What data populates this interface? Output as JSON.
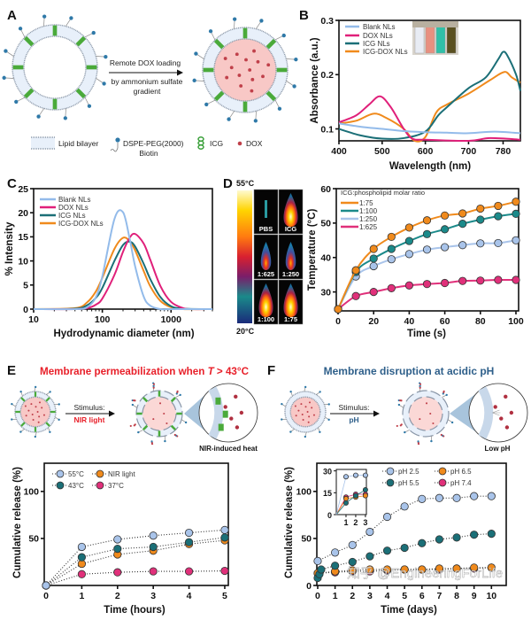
{
  "panel_labels": {
    "a": "A",
    "b": "B",
    "c": "C",
    "d": "D",
    "e": "E",
    "f": "F"
  },
  "panel_a": {
    "arrow_text_1": "Remote DOX loading",
    "arrow_text_2": "by ammonium sulfate",
    "arrow_text_3": "gradient",
    "legend": {
      "lipid": "Lipid bilayer",
      "dspe_1": "DSPE-PEG(2000)",
      "dspe_2": "Biotin",
      "icg": "ICG",
      "dox": "DOX"
    }
  },
  "panel_d_images": {
    "scale_max": "55°C",
    "scale_min": "20°C",
    "labels": [
      "PBS",
      "ICG",
      "1:625",
      "1:250",
      "1:100",
      "1:75"
    ]
  },
  "panel_e": {
    "title": "Membrane permeabilization when ",
    "title_T": "T",
    "title_tail": " > 43°C",
    "stimulus": "Stimulus:",
    "stimulus_value": "NIR light",
    "zoom_caption": "NIR-induced heat"
  },
  "panel_f": {
    "title": "Membrane disruption at acidic pH",
    "stimulus": "Stimulus:",
    "stimulus_value": "pH",
    "zoom_caption": "Low pH"
  },
  "watermark": "知乎 @EngineeringForLife",
  "colors": {
    "blank": "#93bbea",
    "dox": "#e0207a",
    "icg": "#1b6f77",
    "icg_dox": "#f08a1c",
    "title_e": "#e8202a",
    "title_f": "#2e5f8a"
  },
  "chart_data": [
    {
      "panel": "B",
      "type": "line",
      "xlabel": "Wavelength (nm)",
      "ylabel": "Absorbance (a.u.)",
      "xlim": [
        400,
        820
      ],
      "ylim": [
        0.078,
        0.3
      ],
      "xscale": "linear",
      "xticks": [
        400,
        500,
        600,
        700,
        780
      ],
      "yticks": [
        0.1,
        0.2,
        0.3
      ],
      "legend": "top-left",
      "series": [
        {
          "name": "Blank NLs",
          "color": "#93bbea",
          "x": [
            400,
            450,
            500,
            550,
            600,
            650,
            700,
            760,
            820
          ],
          "y": [
            0.11,
            0.104,
            0.1,
            0.096,
            0.094,
            0.093,
            0.092,
            0.095,
            0.092
          ]
        },
        {
          "name": "DOX NLs",
          "color": "#e0207a",
          "x": [
            400,
            440,
            470,
            495,
            520,
            550,
            570,
            600,
            700,
            750,
            820
          ],
          "y": [
            0.112,
            0.125,
            0.145,
            0.16,
            0.14,
            0.1,
            0.082,
            0.08,
            0.078,
            0.083,
            0.08
          ]
        },
        {
          "name": "ICG NLs",
          "color": "#1b6f77",
          "x": [
            400,
            450,
            500,
            550,
            600,
            630,
            650,
            700,
            740,
            770,
            780,
            790,
            810,
            820
          ],
          "y": [
            0.1,
            0.088,
            0.082,
            0.083,
            0.095,
            0.125,
            0.14,
            0.175,
            0.195,
            0.23,
            0.242,
            0.235,
            0.2,
            0.17
          ]
        },
        {
          "name": "ICG-DOX NLs",
          "color": "#f08a1c",
          "x": [
            400,
            440,
            480,
            510,
            550,
            575,
            600,
            625,
            650,
            700,
            750,
            783,
            800,
            820
          ],
          "y": [
            0.11,
            0.115,
            0.128,
            0.12,
            0.1,
            0.078,
            0.085,
            0.13,
            0.145,
            0.165,
            0.19,
            0.205,
            0.195,
            0.185
          ]
        }
      ]
    },
    {
      "panel": "C",
      "type": "line",
      "xlabel": "Hydrodynamic diameter (nm)",
      "ylabel": "% Intensity",
      "xlim": [
        10,
        4000
      ],
      "ylim": [
        0,
        25
      ],
      "xscale": "log",
      "xticks": [
        10,
        100,
        1000
      ],
      "yticks": [
        0,
        5,
        10,
        15,
        20,
        25
      ],
      "legend": "top-left",
      "series": [
        {
          "name": "Blank NLs",
          "color": "#93bbea",
          "x": [
            10,
            40,
            60,
            80,
            100,
            150,
            200,
            250,
            300,
            400,
            500,
            700,
            1000,
            4000
          ],
          "y": [
            0,
            0,
            0.4,
            2.4,
            6.8,
            18.7,
            20.1,
            14.6,
            8.9,
            2.6,
            0.7,
            0,
            0,
            0
          ]
        },
        {
          "name": "DOX NLs",
          "color": "#e0207a",
          "x": [
            10,
            40,
            60,
            80,
            100,
            150,
            200,
            250,
            300,
            400,
            500,
            700,
            1000,
            1500,
            2000,
            4000
          ],
          "y": [
            0,
            0,
            0.2,
            0.9,
            2.2,
            7.1,
            11.9,
            14.8,
            15.6,
            13.6,
            10.2,
            4.8,
            1.5,
            0.2,
            0,
            0
          ]
        },
        {
          "name": "ICG NLs",
          "color": "#1b6f77",
          "x": [
            10,
            40,
            60,
            80,
            100,
            150,
            200,
            250,
            300,
            400,
            500,
            700,
            1000,
            1500,
            4000
          ],
          "y": [
            0,
            0.1,
            0.8,
            2.3,
            4.4,
            10,
            13.3,
            14,
            13,
            9.4,
            6.2,
            2.5,
            0.6,
            0.1,
            0
          ]
        },
        {
          "name": "ICG-DOX NLs",
          "color": "#f08a1c",
          "x": [
            10,
            40,
            60,
            80,
            100,
            150,
            200,
            250,
            300,
            400,
            500,
            700,
            1000,
            1500,
            4000
          ],
          "y": [
            0,
            0.2,
            1.4,
            3.6,
            6.5,
            12.5,
            14.8,
            14.1,
            12.2,
            7.9,
            4.7,
            1.7,
            0.4,
            0,
            0
          ]
        }
      ]
    },
    {
      "panel": "D",
      "type": "line",
      "xlabel": "Time (s)",
      "ylabel": "Temperature (°C)",
      "xlim": [
        -1,
        101.5
      ],
      "ylim": [
        24.5,
        60
      ],
      "xscale": "linear",
      "xticks": [
        0,
        20,
        40,
        60,
        80,
        100
      ],
      "yticks": [
        30,
        40,
        50,
        60
      ],
      "legend_title": "ICG:phospholipid molar ratio",
      "legend": "top-left",
      "series": [
        {
          "name": "1:75",
          "color": "#f08a1c",
          "x": [
            0,
            10,
            20,
            30,
            40,
            50,
            60,
            70,
            80,
            90,
            100
          ],
          "y": [
            25,
            36.3,
            42.5,
            46,
            48.7,
            50.8,
            52.2,
            52.8,
            54.2,
            55,
            56.2
          ]
        },
        {
          "name": "1:100",
          "color": "#1b8a8a",
          "x": [
            0,
            10,
            20,
            30,
            40,
            50,
            60,
            70,
            80,
            90,
            100
          ],
          "y": [
            25,
            35.8,
            39.7,
            42.5,
            44.8,
            46.8,
            48.2,
            49.8,
            51,
            52,
            52.7
          ]
        },
        {
          "name": "1:250",
          "color": "#a9c4ea",
          "x": [
            0,
            10,
            20,
            30,
            40,
            50,
            60,
            70,
            80,
            90,
            100
          ],
          "y": [
            25,
            34.5,
            37.5,
            39.5,
            41,
            42.3,
            43,
            43.6,
            44.1,
            44.2,
            45
          ]
        },
        {
          "name": "1:625",
          "color": "#e0307a",
          "x": [
            0,
            10,
            20,
            30,
            40,
            50,
            60,
            70,
            80,
            90,
            100
          ],
          "y": [
            25,
            28.8,
            30,
            31.1,
            31.9,
            32.3,
            32.6,
            33.2,
            33.3,
            33.5,
            33.5
          ]
        }
      ]
    },
    {
      "panel": "E",
      "type": "scatter",
      "xlabel": "Time (hours)",
      "ylabel": "Cumulative release (%)",
      "xlim": [
        -0.05,
        5.1
      ],
      "ylim": [
        0,
        130
      ],
      "xscale": "linear",
      "xticks": [
        0,
        1,
        2,
        3,
        4,
        5
      ],
      "yticks": [
        50,
        100
      ],
      "legend": "top-left",
      "series": [
        {
          "name": "55°C",
          "color": "#a9c4ea",
          "x": [
            0,
            1,
            2,
            3,
            4,
            5
          ],
          "y": [
            0,
            41,
            49,
            53,
            56,
            59
          ]
        },
        {
          "name": "43°C",
          "color": "#1b6f77",
          "x": [
            0,
            1,
            2,
            3,
            4,
            5
          ],
          "y": [
            0,
            30,
            39,
            41,
            46,
            51
          ]
        },
        {
          "name": "NIR light",
          "color": "#f08a1c",
          "x": [
            0,
            1,
            2,
            3,
            4,
            5
          ],
          "y": [
            0,
            23,
            33,
            37,
            44,
            48
          ]
        },
        {
          "name": "37°C",
          "color": "#e0307a",
          "x": [
            0,
            1,
            2,
            3,
            4,
            5
          ],
          "y": [
            0,
            12,
            14,
            15,
            15,
            15.5
          ]
        }
      ]
    },
    {
      "panel": "F",
      "type": "scatter",
      "xlabel": "Time (days)",
      "ylabel": "Cumulative release (%)",
      "xlim": [
        -0.05,
        10.85
      ],
      "ylim": [
        0,
        130
      ],
      "xscale": "linear",
      "xticks": [
        0,
        1,
        2,
        3,
        4,
        5,
        6,
        7,
        8,
        9,
        10
      ],
      "yticks": [
        0,
        50,
        100
      ],
      "legend": "top-right",
      "series": [
        {
          "name": "pH 2.5",
          "color": "#a9c4ea",
          "x": [
            0,
            1,
            2,
            3,
            4,
            5,
            6,
            7,
            8,
            9,
            10
          ],
          "y": [
            26,
            35,
            43,
            57,
            73,
            84,
            92,
            93,
            93,
            95,
            95
          ]
        },
        {
          "name": "pH 5.5",
          "color": "#1b6f77",
          "x": [
            0,
            0.1,
            0.2,
            1,
            2,
            3,
            4,
            5,
            6,
            7,
            8,
            9,
            10
          ],
          "y": [
            8,
            12,
            17,
            21,
            25,
            31,
            37,
            40,
            45,
            49,
            51,
            54,
            55
          ]
        },
        {
          "name": "pH 6.5",
          "color": "#f08a1c",
          "x": [
            0,
            1,
            2,
            3,
            4,
            5,
            6,
            7,
            8,
            9,
            10
          ],
          "y": [
            13,
            15,
            16,
            17,
            17,
            17,
            17,
            18,
            18,
            19,
            19
          ]
        },
        {
          "name": "pH 7.4",
          "color": "#e0307a",
          "x": [
            0,
            1,
            2,
            3,
            4,
            5,
            6,
            7,
            8,
            9,
            10
          ],
          "y": [
            13,
            14,
            15,
            15,
            16,
            17,
            17,
            17,
            18,
            18,
            19
          ]
        }
      ]
    },
    {
      "panel": "F-inset",
      "type": "line",
      "xlim": [
        0,
        3.1
      ],
      "ylim": [
        0,
        31
      ],
      "xscale": "linear",
      "xticks": [
        1,
        2,
        3
      ],
      "yticks": [
        0,
        15,
        30
      ],
      "series": [
        {
          "name": "pH 2.5",
          "color": "#a9c4ea",
          "x": [
            0,
            1,
            2,
            3
          ],
          "y": [
            0,
            26,
            27,
            27
          ]
        },
        {
          "name": "pH 5.5",
          "color": "#1b6f77",
          "x": [
            0,
            1,
            2,
            3
          ],
          "y": [
            0,
            8,
            13,
            17
          ]
        },
        {
          "name": "pH 6.5",
          "color": "#f08a1c",
          "x": [
            0,
            1,
            2,
            3
          ],
          "y": [
            0,
            11,
            12,
            13
          ]
        },
        {
          "name": "pH 7.4",
          "color": "#e0307a",
          "x": [
            0,
            1,
            2,
            3
          ],
          "y": [
            0,
            12,
            14,
            14
          ]
        }
      ]
    }
  ]
}
